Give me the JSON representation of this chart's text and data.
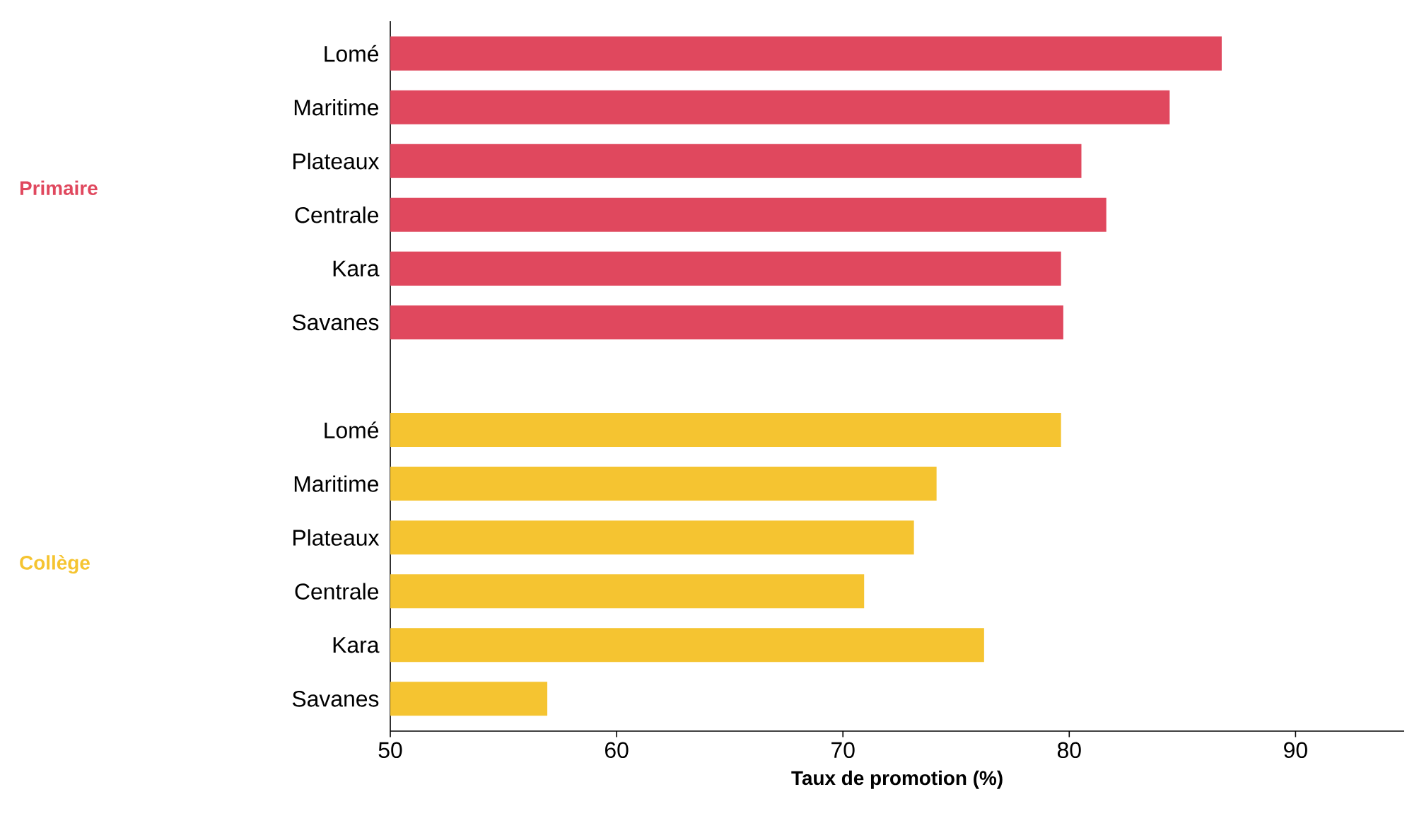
{
  "chart_data": {
    "type": "bar",
    "orientation": "horizontal",
    "xlabel": "Taux de promotion (%)",
    "categories": [
      "Lomé",
      "Maritime",
      "Plateaux",
      "Centrale",
      "Kara",
      "Savanes",
      null,
      "Lomé",
      "Maritime",
      "Plateaux",
      "Centrale",
      "Kara",
      "Savanes"
    ],
    "series": [
      {
        "name": "Primaire",
        "color": "#e0485e",
        "values": [
          86.7,
          84.4,
          80.5,
          81.6,
          79.6,
          79.7,
          null,
          null,
          null,
          null,
          null,
          null,
          null
        ]
      },
      {
        "name": "Collège",
        "color": "#f5c431",
        "values": [
          null,
          null,
          null,
          null,
          null,
          null,
          null,
          79.6,
          74.1,
          73.1,
          70.9,
          76.2,
          56.9
        ]
      }
    ],
    "xlim": [
      50,
      94.8
    ],
    "xticks": [
      50,
      60,
      70,
      80,
      90
    ],
    "grid": false
  }
}
